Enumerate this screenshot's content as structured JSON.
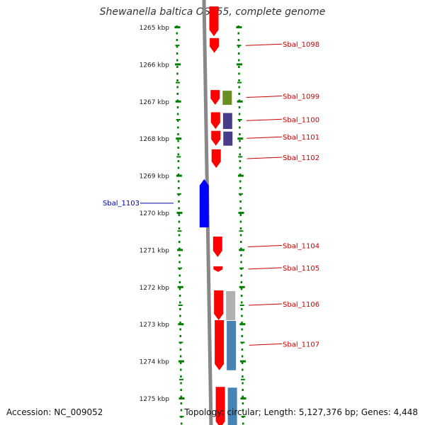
{
  "title": "Shewanella baltica OS155, complete genome",
  "accession": "Accession: NC_009052",
  "info": "Topology: circular; Length: 5,127,376 bp; Genes: 4,448",
  "colors": {
    "gene_forward": "#ff0000",
    "gene_reverse": "#0000ff",
    "label_forward": "#cc0000",
    "label_reverse": "#0000aa",
    "backbone": "#888888",
    "tick_green": "#008000",
    "cog_green": "#6b8e23",
    "cog_purple": "#483d8b",
    "cog_grey": "#b0b0b0",
    "cog_steelblue": "#4682b4"
  },
  "ticks": [
    {
      "kbp": 1265,
      "label": "1265 kbp"
    },
    {
      "kbp": 1266,
      "label": "1266 kbp"
    },
    {
      "kbp": 1267,
      "label": "1267 kbp"
    },
    {
      "kbp": 1268,
      "label": "1268 kbp"
    },
    {
      "kbp": 1269,
      "label": "1269 kbp"
    },
    {
      "kbp": 1270,
      "label": "1270 kbp"
    },
    {
      "kbp": 1271,
      "label": "1271 kbp"
    },
    {
      "kbp": 1272,
      "label": "1272 kbp"
    },
    {
      "kbp": 1273,
      "label": "1273 kbp"
    },
    {
      "kbp": 1274,
      "label": "1274 kbp"
    },
    {
      "kbp": 1275,
      "label": "1275 kbp"
    }
  ],
  "genes": [
    {
      "id": "g_top",
      "label": "",
      "strand": "+",
      "start": 1264.45,
      "end": 1265.25
    },
    {
      "id": "Sbal_1098",
      "label": "Sbal_1098",
      "strand": "+",
      "start": 1265.3,
      "end": 1265.7,
      "cog": "none"
    },
    {
      "id": "Sbal_1099",
      "label": "Sbal_1099",
      "strand": "+",
      "start": 1266.7,
      "end": 1267.1,
      "cog": "cog_green"
    },
    {
      "id": "Sbal_1100",
      "label": "Sbal_1100",
      "strand": "+",
      "start": 1267.3,
      "end": 1267.75,
      "cog": "cog_purple"
    },
    {
      "id": "Sbal_1101",
      "label": "Sbal_1101",
      "strand": "+",
      "start": 1267.8,
      "end": 1268.2,
      "cog": "cog_purple"
    },
    {
      "id": "Sbal_1102",
      "label": "Sbal_1102",
      "strand": "+",
      "start": 1268.3,
      "end": 1268.8,
      "cog": "none"
    },
    {
      "id": "Sbal_1103",
      "label": "Sbal_1103",
      "strand": "-",
      "start": 1269.1,
      "end": 1270.4,
      "cog": "none"
    },
    {
      "id": "Sbal_1104",
      "label": "Sbal_1104",
      "strand": "+",
      "start": 1270.65,
      "end": 1271.2,
      "cog": "none"
    },
    {
      "id": "Sbal_1105",
      "label": "Sbal_1105",
      "strand": "+",
      "start": 1271.45,
      "end": 1271.6,
      "cog": "none"
    },
    {
      "id": "Sbal_1106",
      "label": "Sbal_1106",
      "strand": "+",
      "start": 1272.1,
      "end": 1272.9,
      "cog": "cog_grey"
    },
    {
      "id": "Sbal_1107",
      "label": "Sbal_1107",
      "strand": "+",
      "start": 1272.9,
      "end": 1274.25,
      "cog": "cog_steelblue"
    },
    {
      "id": "g_bottom",
      "label": "",
      "strand": "+",
      "start": 1274.7,
      "end": 1275.8,
      "cog": "cog_steelblue"
    }
  ]
}
